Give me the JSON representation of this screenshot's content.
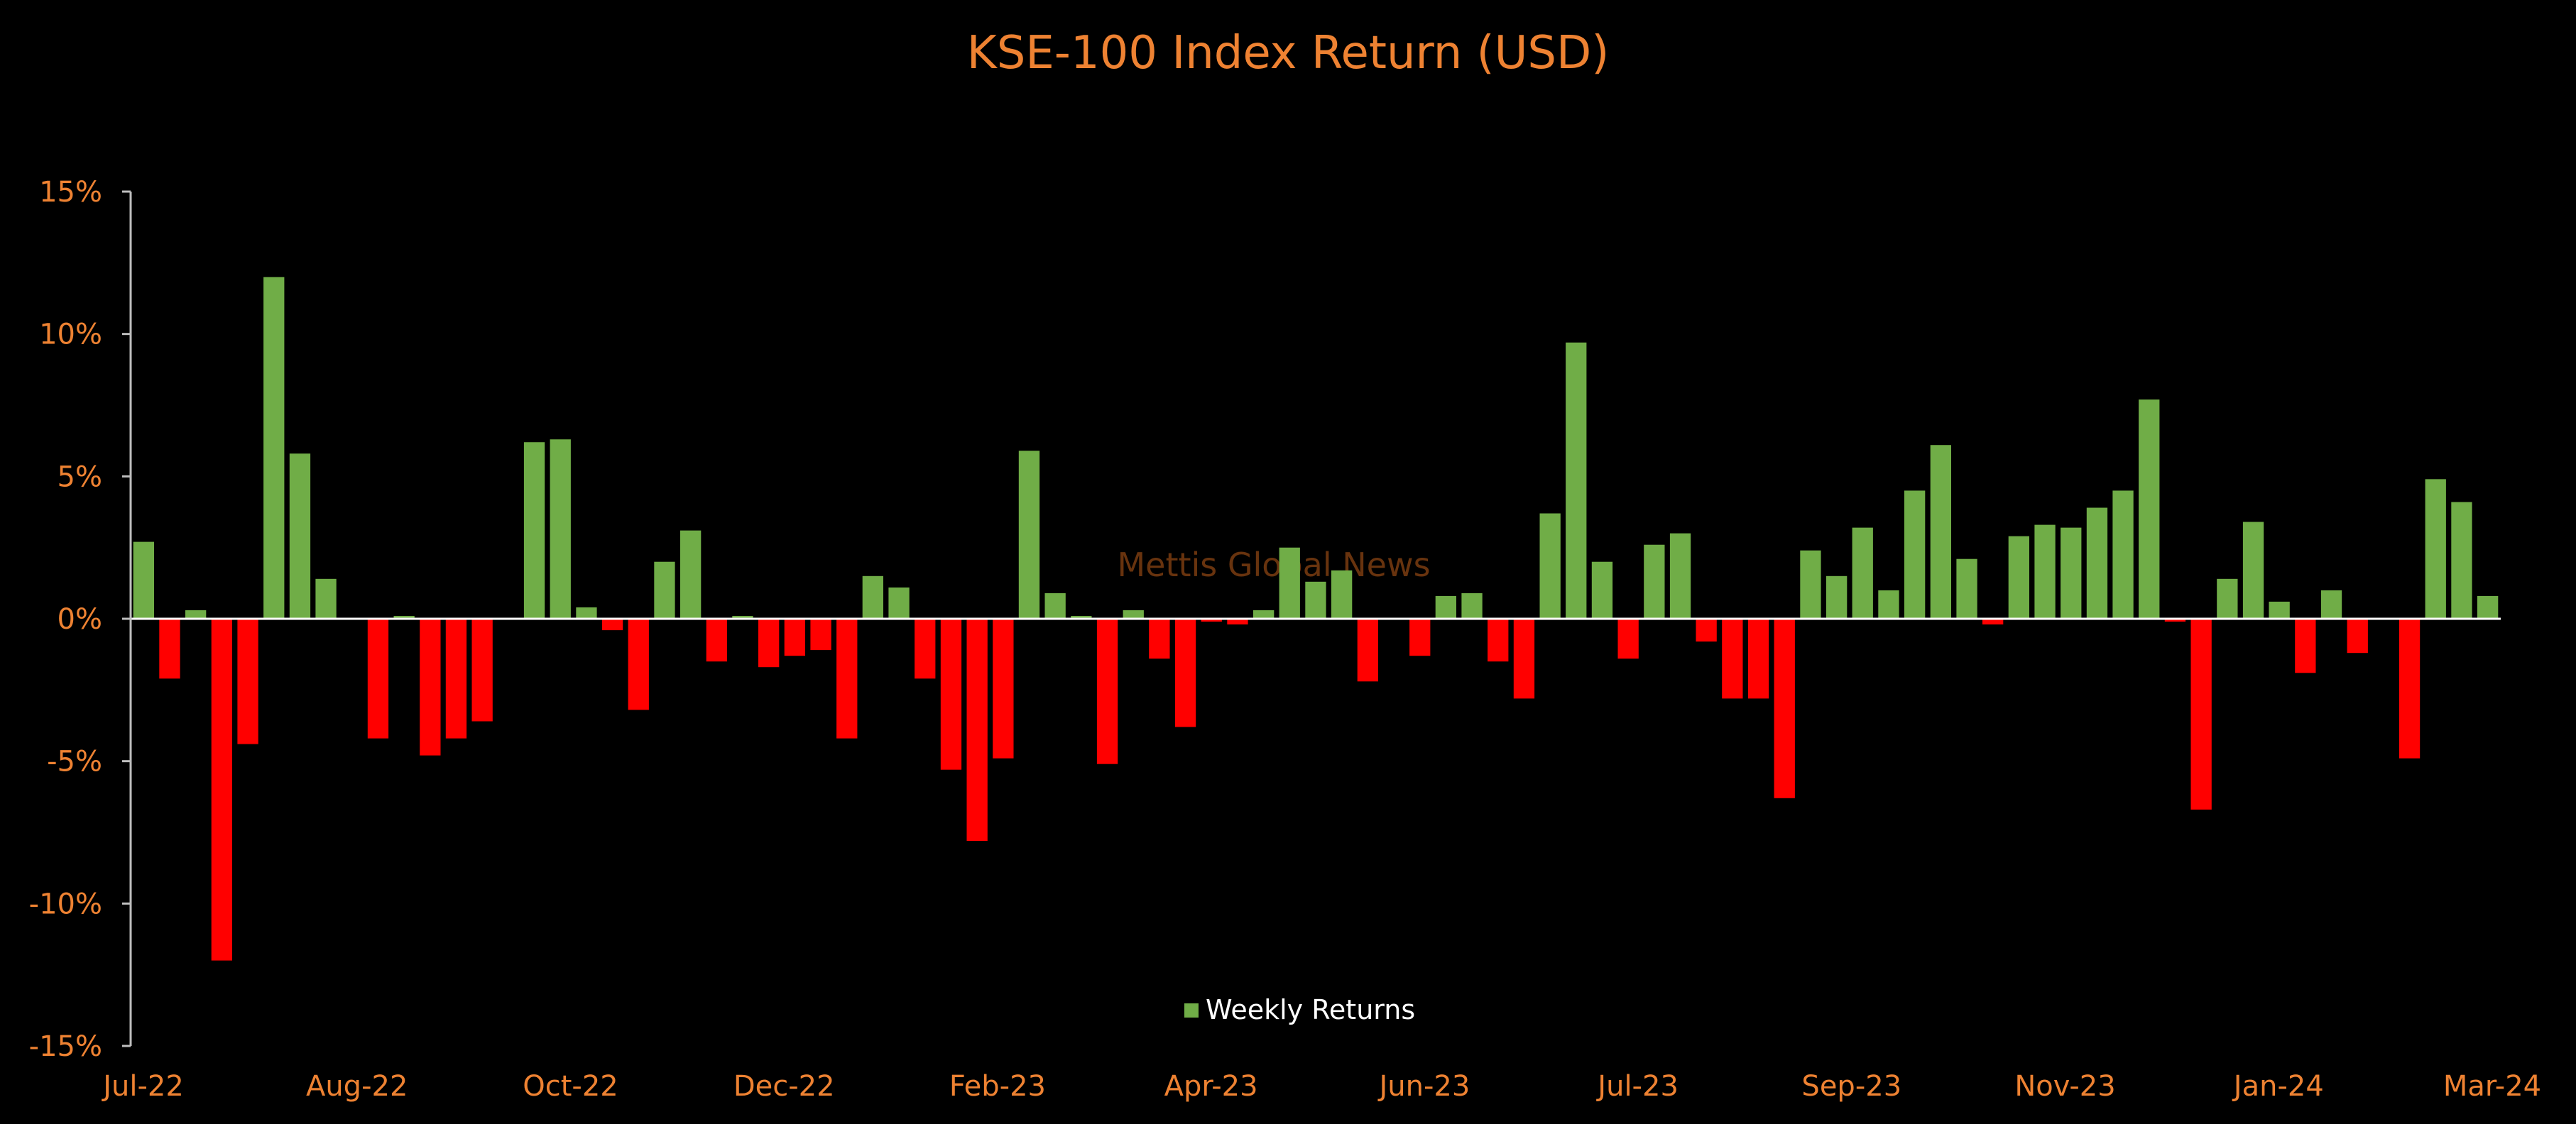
{
  "chart_data": {
    "type": "bar",
    "title": "KSE-100 Index Return (USD)",
    "watermark": "Mettis Global News",
    "ylim": [
      -15,
      15
    ],
    "y_ticks": [
      {
        "value": 15,
        "label": "15%"
      },
      {
        "value": 10,
        "label": "10%"
      },
      {
        "value": 5,
        "label": "5%"
      },
      {
        "value": 0,
        "label": "0%"
      },
      {
        "value": -5,
        "label": "-5%"
      },
      {
        "value": -10,
        "label": "-10%"
      },
      {
        "value": -15,
        "label": "-15%"
      }
    ],
    "x_tick_labels": [
      "Jul-22",
      "Aug-22",
      "Oct-22",
      "Dec-22",
      "Feb-23",
      "Apr-23",
      "Jun-23",
      "Jul-23",
      "Sep-23",
      "Nov-23",
      "Jan-24",
      "Mar-24"
    ],
    "colors": {
      "positive": "#70AD47",
      "negative": "#FF0000",
      "axis": "#BFBFBF",
      "zero_line": "#FFFFFF"
    },
    "grid": false,
    "legend": {
      "position": "bottom-center",
      "items": [
        {
          "label": "Weekly Returns",
          "color": "#70AD47"
        }
      ]
    },
    "series": [
      {
        "name": "Weekly Returns",
        "values": [
          2.7,
          -2.1,
          0.3,
          -12.0,
          -4.4,
          12.0,
          5.8,
          1.4,
          0.0,
          -4.2,
          0.1,
          -4.8,
          -4.2,
          -3.6,
          0.0,
          6.2,
          6.3,
          0.4,
          -0.4,
          -3.2,
          2.0,
          3.1,
          -1.5,
          0.1,
          -1.7,
          -1.3,
          -1.1,
          -4.2,
          1.5,
          1.1,
          -2.1,
          -5.3,
          -7.8,
          -4.9,
          5.9,
          0.9,
          0.1,
          -5.1,
          0.3,
          -1.4,
          -3.8,
          -0.1,
          -0.2,
          0.3,
          2.5,
          1.3,
          1.7,
          -2.2,
          0.0,
          -1.3,
          0.8,
          0.9,
          -1.5,
          -2.8,
          3.7,
          9.7,
          2.0,
          -1.4,
          2.6,
          3.0,
          -0.8,
          -2.8,
          -2.8,
          -6.3,
          2.4,
          1.5,
          3.2,
          1.0,
          4.5,
          6.1,
          2.1,
          -0.2,
          2.9,
          3.3,
          3.2,
          3.9,
          4.5,
          7.7,
          -0.1,
          -6.7,
          1.4,
          3.4,
          0.6,
          -1.9,
          1.0,
          -1.2,
          0.0,
          -4.9,
          4.9,
          4.1,
          0.8
        ]
      }
    ]
  }
}
